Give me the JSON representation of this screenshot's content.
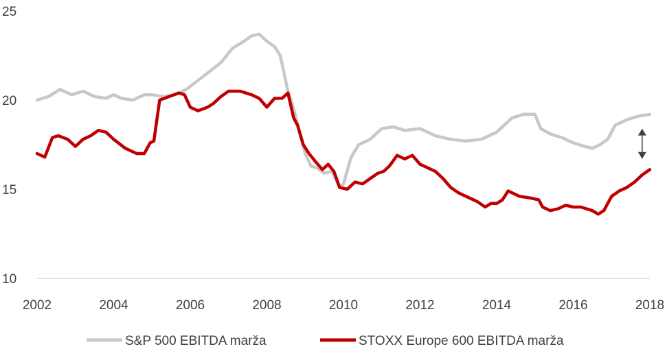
{
  "chart_data": {
    "type": "line",
    "title": "",
    "xlabel": "",
    "ylabel": "",
    "xlim": [
      2002,
      2018
    ],
    "ylim": [
      10,
      25
    ],
    "x_ticks": [
      "2002",
      "2004",
      "2006",
      "2008",
      "2010",
      "2012",
      "2014",
      "2016",
      "2018"
    ],
    "y_ticks": [
      "10",
      "15",
      "20",
      "25"
    ],
    "grid": false,
    "legend_position": "bottom",
    "annotation": "double-headed arrow marking the gap between the two series around 2017.8",
    "series": [
      {
        "name": "S&P 500 EBITDA marža",
        "color": "#c8c8c8",
        "x": [
          2002.0,
          2002.3,
          2002.6,
          2002.9,
          2003.2,
          2003.5,
          2003.8,
          2004.0,
          2004.2,
          2004.5,
          2004.8,
          2005.0,
          2005.3,
          2005.6,
          2005.9,
          2006.2,
          2006.5,
          2006.8,
          2007.1,
          2007.4,
          2007.6,
          2007.8,
          2008.0,
          2008.2,
          2008.35,
          2008.45,
          2008.55,
          2008.7,
          2008.85,
          2009.0,
          2009.15,
          2009.3,
          2009.5,
          2009.7,
          2009.9,
          2010.0,
          2010.2,
          2010.4,
          2010.7,
          2011.0,
          2011.3,
          2011.6,
          2012.0,
          2012.4,
          2012.8,
          2013.2,
          2013.6,
          2014.0,
          2014.2,
          2014.4,
          2014.7,
          2015.0,
          2015.15,
          2015.4,
          2015.7,
          2016.0,
          2016.3,
          2016.5,
          2016.7,
          2016.9,
          2017.1,
          2017.4,
          2017.7,
          2018.0
        ],
        "y": [
          20.0,
          20.2,
          20.6,
          20.3,
          20.5,
          20.2,
          20.1,
          20.3,
          20.1,
          20.0,
          20.3,
          20.3,
          20.2,
          20.3,
          20.6,
          21.1,
          21.6,
          22.1,
          22.9,
          23.3,
          23.6,
          23.7,
          23.3,
          23.0,
          22.5,
          21.5,
          20.5,
          19.5,
          18.2,
          17.0,
          16.3,
          16.2,
          15.9,
          16.0,
          15.1,
          15.3,
          16.8,
          17.5,
          17.8,
          18.4,
          18.5,
          18.3,
          18.4,
          18.0,
          17.8,
          17.7,
          17.8,
          18.2,
          18.6,
          19.0,
          19.2,
          19.2,
          18.4,
          18.1,
          17.9,
          17.6,
          17.4,
          17.3,
          17.5,
          17.8,
          18.6,
          18.9,
          19.1,
          19.2
        ]
      },
      {
        "name": "STOXX Europe 600 EBITDA marža",
        "color": "#c00000",
        "x": [
          2002.0,
          2002.2,
          2002.4,
          2002.55,
          2002.8,
          2003.0,
          2003.2,
          2003.4,
          2003.6,
          2003.8,
          2004.0,
          2004.3,
          2004.6,
          2004.8,
          2004.95,
          2005.05,
          2005.2,
          2005.45,
          2005.7,
          2005.85,
          2006.0,
          2006.2,
          2006.45,
          2006.6,
          2006.8,
          2007.0,
          2007.3,
          2007.6,
          2007.8,
          2008.0,
          2008.2,
          2008.4,
          2008.55,
          2008.7,
          2008.8,
          2008.95,
          2009.1,
          2009.25,
          2009.45,
          2009.6,
          2009.75,
          2009.9,
          2010.1,
          2010.3,
          2010.5,
          2010.7,
          2010.9,
          2011.05,
          2011.2,
          2011.4,
          2011.6,
          2011.8,
          2012.0,
          2012.2,
          2012.4,
          2012.6,
          2012.8,
          2013.0,
          2013.2,
          2013.5,
          2013.7,
          2013.85,
          2014.0,
          2014.15,
          2014.3,
          2014.6,
          2014.9,
          2015.1,
          2015.2,
          2015.4,
          2015.6,
          2015.8,
          2016.0,
          2016.2,
          2016.35,
          2016.5,
          2016.65,
          2016.8,
          2016.9,
          2017.0,
          2017.2,
          2017.4,
          2017.6,
          2017.8,
          2018.0
        ],
        "y": [
          17.0,
          16.8,
          17.9,
          18.0,
          17.8,
          17.4,
          17.8,
          18.0,
          18.3,
          18.2,
          17.8,
          17.3,
          17.0,
          17.0,
          17.6,
          17.7,
          20.0,
          20.2,
          20.4,
          20.3,
          19.6,
          19.4,
          19.6,
          19.8,
          20.2,
          20.5,
          20.5,
          20.3,
          20.1,
          19.6,
          20.1,
          20.1,
          20.4,
          19.0,
          18.6,
          17.5,
          17.0,
          16.6,
          16.1,
          16.4,
          16.0,
          15.1,
          15.0,
          15.4,
          15.3,
          15.6,
          15.9,
          16.0,
          16.3,
          16.9,
          16.7,
          16.9,
          16.4,
          16.2,
          16.0,
          15.6,
          15.1,
          14.8,
          14.6,
          14.3,
          14.0,
          14.2,
          14.2,
          14.4,
          14.9,
          14.6,
          14.5,
          14.4,
          14.0,
          13.8,
          13.9,
          14.1,
          14.0,
          14.0,
          13.9,
          13.8,
          13.6,
          13.8,
          14.2,
          14.6,
          14.9,
          15.1,
          15.4,
          15.8,
          16.1
        ]
      }
    ]
  }
}
